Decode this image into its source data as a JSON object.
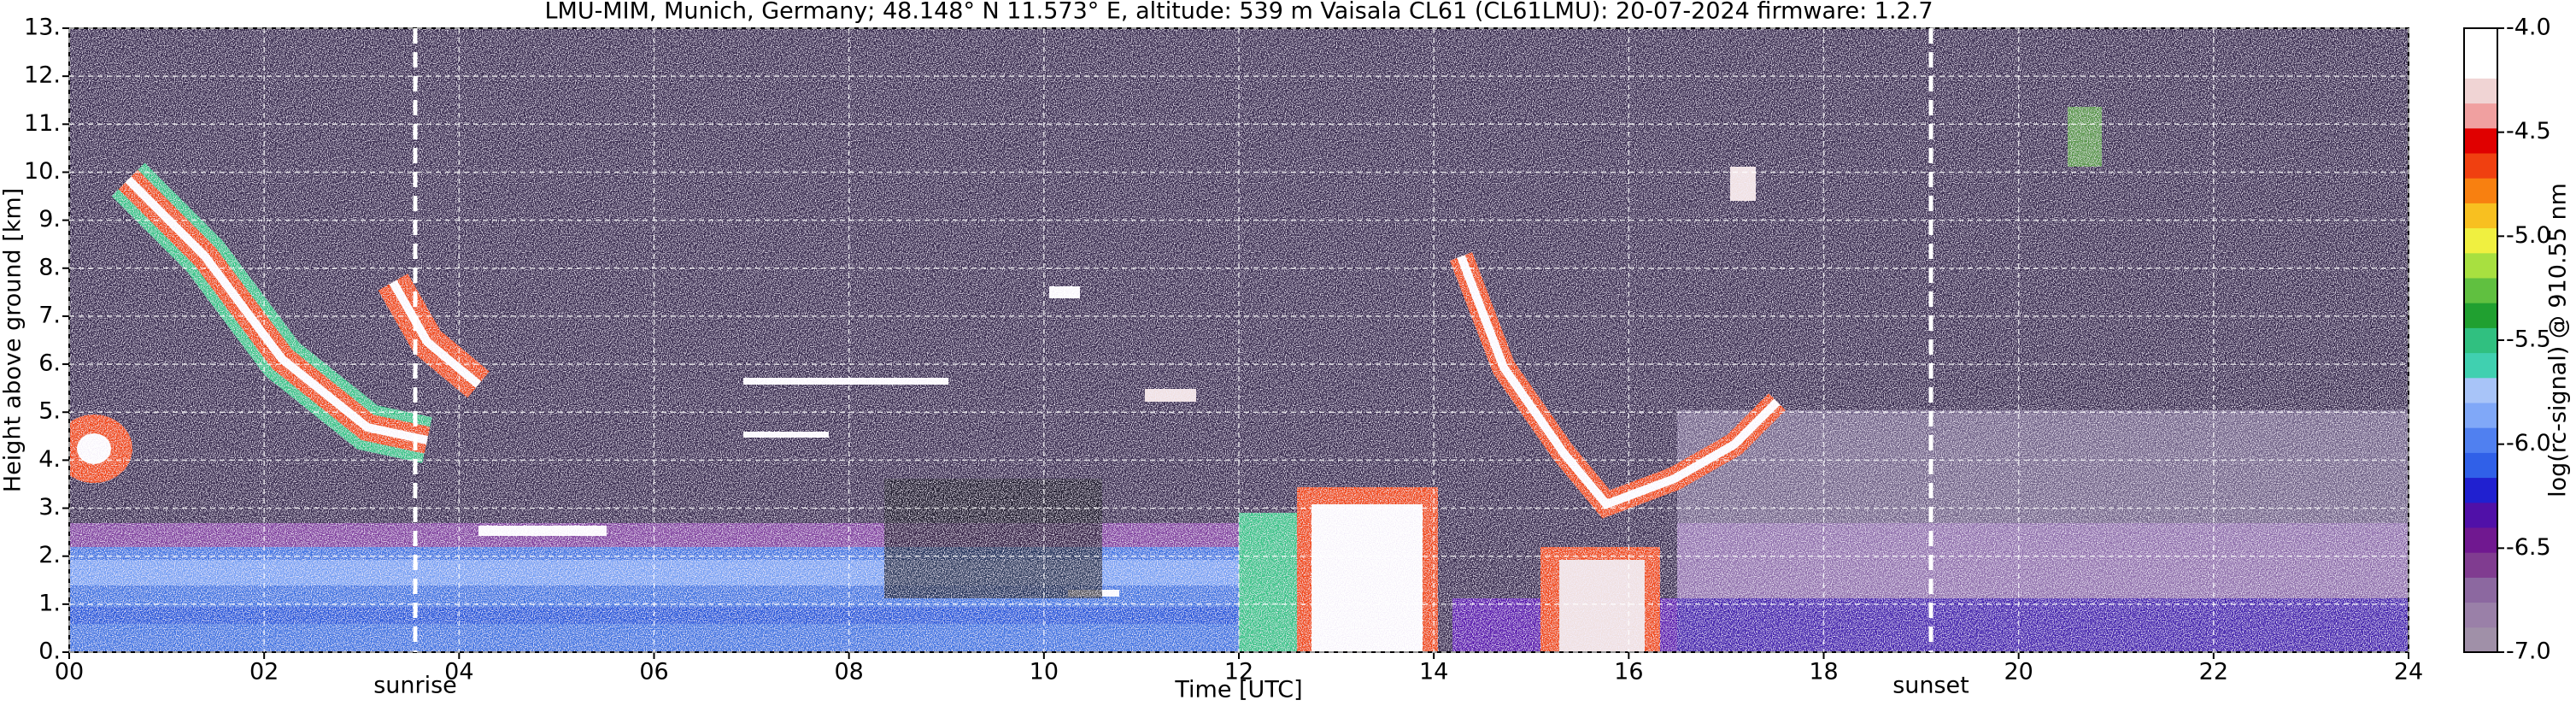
{
  "chart_data": {
    "type": "heatmap",
    "title": "LMU-MIM, Munich, Germany; 48.148° N 11.573° E, altitude: 539 m    Vaisala CL61 (CL61LMU): 20-07-2024    firmware: 1.2.7",
    "xlabel": "Time [UTC]",
    "ylabel": "Height above ground [km]",
    "xlim": [
      0,
      24
    ],
    "ylim": [
      0,
      13
    ],
    "xticks": [
      {
        "value": 0,
        "label": "00"
      },
      {
        "value": 2,
        "label": "02"
      },
      {
        "value": 4,
        "label": "04"
      },
      {
        "value": 6,
        "label": "06"
      },
      {
        "value": 8,
        "label": "08"
      },
      {
        "value": 10,
        "label": "10"
      },
      {
        "value": 12,
        "label": "12"
      },
      {
        "value": 14,
        "label": "14"
      },
      {
        "value": 16,
        "label": "16"
      },
      {
        "value": 18,
        "label": "18"
      },
      {
        "value": 20,
        "label": "20"
      },
      {
        "value": 22,
        "label": "22"
      },
      {
        "value": 24,
        "label": "24"
      }
    ],
    "yticks": [
      {
        "value": 0,
        "label": "0."
      },
      {
        "value": 1,
        "label": "1."
      },
      {
        "value": 2,
        "label": "2."
      },
      {
        "value": 3,
        "label": "3."
      },
      {
        "value": 4,
        "label": "4."
      },
      {
        "value": 5,
        "label": "5."
      },
      {
        "value": 6,
        "label": "6."
      },
      {
        "value": 7,
        "label": "7."
      },
      {
        "value": 8,
        "label": "8."
      },
      {
        "value": 9,
        "label": "9."
      },
      {
        "value": 10,
        "label": "10."
      },
      {
        "value": 11,
        "label": "11."
      },
      {
        "value": 12,
        "label": "12."
      },
      {
        "value": 13,
        "label": "13."
      }
    ],
    "grid": true,
    "colorbar": {
      "label": "log(rc-signal) @ 910.55 nm",
      "clim": [
        -7,
        -4
      ],
      "ticks": [
        {
          "value": -7,
          "label": "-7.0"
        },
        -6.5,
        {
          "value": -6,
          "label": "-6.0"
        },
        -5.5,
        {
          "value": -5,
          "label": "-5.0"
        },
        -4.5,
        {
          "value": -4,
          "label": "-4.0"
        }
      ],
      "colormap": [
        "#a090a8",
        "#9a80a8",
        "#8c68a0",
        "#803c90",
        "#701890",
        "#5010a8",
        "#2020d0",
        "#3060e8",
        "#5080f0",
        "#80a8f8",
        "#a8c4f8",
        "#40d0b0",
        "#30c080",
        "#20a030",
        "#60c040",
        "#a8e040",
        "#f0f040",
        "#f8c020",
        "#f88010",
        "#f04010",
        "#e00000",
        "#f0a0a0",
        "#f0d4d4",
        "#ffffff",
        "#ffffff"
      ]
    },
    "annotations": [
      {
        "text": "sunrise",
        "x": 3.55
      },
      {
        "text": "sunset",
        "x": 19.1
      }
    ]
  }
}
